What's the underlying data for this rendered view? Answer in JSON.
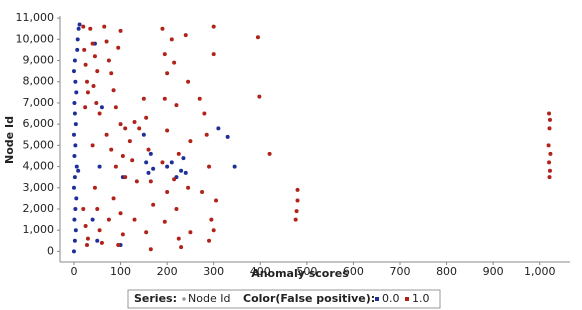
{
  "chart_data": {
    "type": "scatter",
    "xlabel": "Anomaly scores",
    "ylabel": "Node Id",
    "xlim": [
      -30,
      1065
    ],
    "ylim": [
      -500,
      11100
    ],
    "xticks": [
      0,
      100,
      200,
      300,
      400,
      500,
      600,
      700,
      800,
      900,
      {
        "value": 1000,
        "label": "1,000"
      }
    ],
    "yticks": [
      0,
      {
        "value": 1000,
        "label": "1,000"
      },
      {
        "value": 2000,
        "label": "2,000"
      },
      {
        "value": 3000,
        "label": "3,000"
      },
      {
        "value": 4000,
        "label": "4,000"
      },
      {
        "value": 5000,
        "label": "5,000"
      },
      {
        "value": 6000,
        "label": "6,000"
      },
      {
        "value": 7000,
        "label": "7,000"
      },
      {
        "value": 8000,
        "label": "8,000"
      },
      {
        "value": 9000,
        "label": "9,000"
      },
      {
        "value": 10000,
        "label": "10,000"
      },
      {
        "value": 11000,
        "label": "11,000"
      }
    ],
    "series_label": "Series:",
    "series_name": "Node Id",
    "color_label": "Color(False positive):",
    "series": [
      {
        "name": "0.0",
        "color": "#1f2f9a",
        "x": [
          0,
          2,
          4,
          1,
          3,
          5,
          0,
          2,
          6,
          1,
          3,
          0,
          4,
          2,
          1,
          5,
          3,
          0,
          2,
          7,
          8,
          10,
          12,
          9,
          40,
          45,
          55,
          60,
          50,
          100,
          105,
          150,
          155,
          160,
          165,
          170,
          200,
          210,
          220,
          230,
          235,
          240,
          310,
          330,
          345
        ],
        "values": [
          0,
          500,
          1000,
          1500,
          2000,
          2500,
          3000,
          3500,
          4000,
          4500,
          5000,
          5500,
          6000,
          6500,
          7000,
          7500,
          8000,
          8500,
          9000,
          9500,
          10000,
          10500,
          10700,
          3800,
          1500,
          9800,
          4000,
          6800,
          500,
          300,
          3500,
          5500,
          4200,
          3700,
          4600,
          3900,
          4000,
          4200,
          3500,
          3800,
          4400,
          3700,
          5800,
          5400,
          4000
        ]
      },
      {
        "name": "1.0",
        "color": "#b0221a",
        "x": [
          20,
          22,
          25,
          28,
          30,
          24,
          20,
          25,
          30,
          28,
          35,
          40,
          45,
          50,
          42,
          48,
          55,
          40,
          45,
          50,
          55,
          60,
          65,
          70,
          75,
          80,
          85,
          90,
          70,
          80,
          90,
          85,
          75,
          95,
          100,
          95,
          100,
          110,
          105,
          110,
          100,
          105,
          120,
          130,
          140,
          125,
          135,
          130,
          150,
          155,
          160,
          165,
          170,
          155,
          165,
          190,
          195,
          200,
          195,
          200,
          190,
          200,
          195,
          210,
          215,
          220,
          225,
          215,
          220,
          225,
          230,
          240,
          245,
          250,
          245,
          250,
          270,
          280,
          285,
          290,
          275,
          295,
          290,
          300,
          300,
          305,
          300,
          395,
          398,
          420,
          480,
          480,
          478,
          476,
          1020,
          1022,
          1021,
          1019,
          1023,
          1020,
          1022,
          1021
        ],
        "values": [
          10600,
          9500,
          8800,
          8000,
          7500,
          6800,
          2000,
          1200,
          600,
          300,
          10500,
          9800,
          9200,
          8500,
          7800,
          7000,
          6500,
          5000,
          3000,
          2000,
          1000,
          400,
          10600,
          9900,
          9000,
          8400,
          7600,
          6800,
          5500,
          4800,
          4000,
          2500,
          1500,
          300,
          10400,
          9600,
          6000,
          5800,
          4500,
          3500,
          1800,
          800,
          5200,
          6100,
          5800,
          4300,
          3300,
          1500,
          7200,
          6300,
          4800,
          3300,
          2200,
          900,
          100,
          10500,
          9300,
          8400,
          7200,
          5700,
          4200,
          2800,
          1400,
          10000,
          8900,
          6900,
          4600,
          3400,
          2000,
          600,
          200,
          10200,
          8000,
          5200,
          3000,
          900,
          7200,
          6500,
          5500,
          4000,
          2800,
          1500,
          500,
          10600,
          9300,
          2400,
          1000,
          10100,
          7300,
          4600,
          2900,
          2400,
          1900,
          1500,
          6500,
          6200,
          5800,
          5000,
          4600,
          4200,
          3800,
          3500
        ]
      }
    ]
  }
}
